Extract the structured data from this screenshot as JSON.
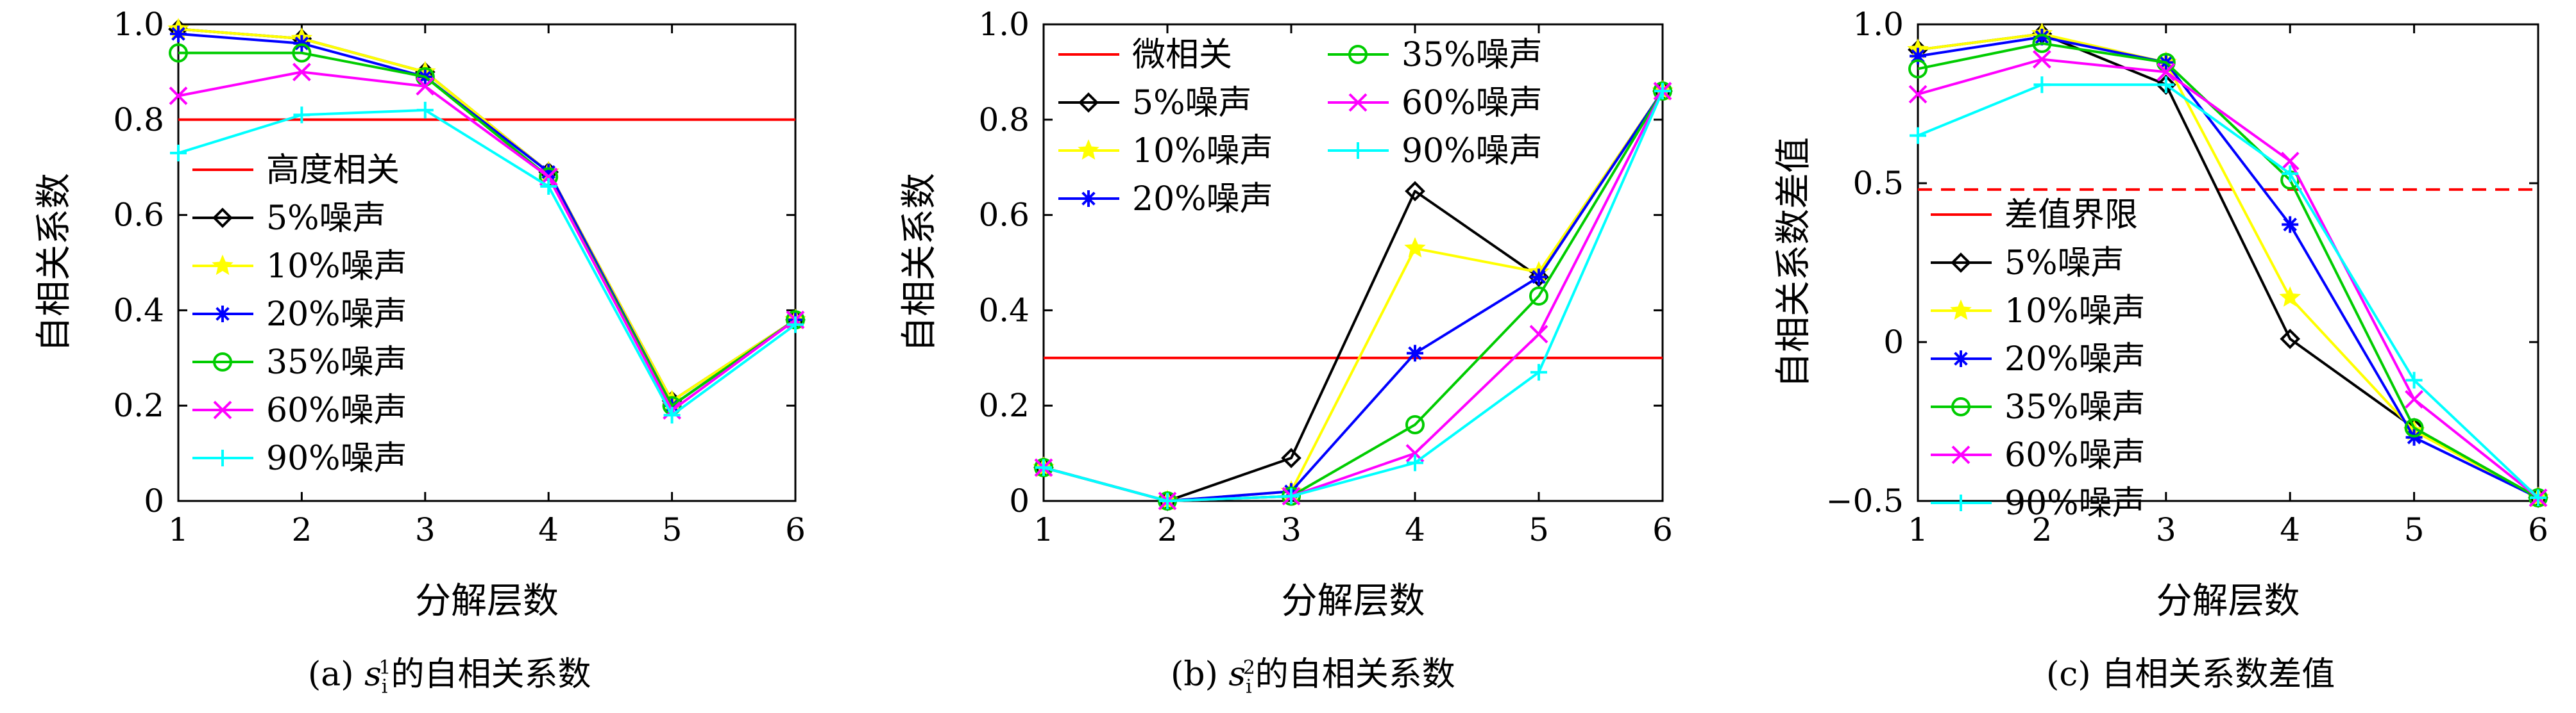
{
  "chart_data": [
    {
      "type": "line",
      "caption": "(a) s_i^1的自相关系数",
      "caption_parts": {
        "label": "(a)",
        "symbol": "s",
        "sub": "i",
        "sup": "1",
        "suffix": "的自相关系数"
      },
      "xlabel": "分解层数",
      "ylabel": "自相关系数",
      "x": [
        1,
        2,
        3,
        4,
        5,
        6
      ],
      "xlim": [
        1,
        6
      ],
      "ylim": [
        0,
        1.0
      ],
      "yticks": [
        0,
        0.2,
        0.4,
        0.6,
        0.8,
        1.0
      ],
      "ytick_labels": [
        "0",
        "0.2",
        "0.4",
        "0.6",
        "0.8",
        "1.0"
      ],
      "xticks": [
        1,
        2,
        3,
        4,
        5,
        6
      ],
      "grid": false,
      "legend_position": "bottom-left",
      "threshold": {
        "name": "高度相关",
        "value": 0.8,
        "color": "#ff0000",
        "dashed": false
      },
      "series": [
        {
          "name": "5%噪声",
          "color": "#000000",
          "marker": "diamond",
          "values": [
            0.99,
            0.97,
            0.9,
            0.69,
            0.21,
            0.38
          ]
        },
        {
          "name": "10%噪声",
          "color": "#ffff00",
          "marker": "star",
          "values": [
            0.99,
            0.97,
            0.9,
            0.69,
            0.21,
            0.38
          ]
        },
        {
          "name": "20%噪声",
          "color": "#0000ff",
          "marker": "asterisk",
          "values": [
            0.98,
            0.96,
            0.89,
            0.69,
            0.2,
            0.38
          ]
        },
        {
          "name": "35%噪声",
          "color": "#00cc00",
          "marker": "circle",
          "values": [
            0.94,
            0.94,
            0.89,
            0.68,
            0.2,
            0.38
          ]
        },
        {
          "name": "60%噪声",
          "color": "#ff00ff",
          "marker": "x",
          "values": [
            0.85,
            0.9,
            0.87,
            0.68,
            0.19,
            0.38
          ]
        },
        {
          "name": "90%噪声",
          "color": "#00ffff",
          "marker": "plus",
          "values": [
            0.73,
            0.81,
            0.82,
            0.66,
            0.18,
            0.37
          ]
        }
      ]
    },
    {
      "type": "line",
      "caption": "(b) s_i^2的自相关系数",
      "caption_parts": {
        "label": "(b)",
        "symbol": "s",
        "sub": "i",
        "sup": "2",
        "suffix": "的自相关系数"
      },
      "xlabel": "分解层数",
      "ylabel": "自相关系数",
      "x": [
        1,
        2,
        3,
        4,
        5,
        6
      ],
      "xlim": [
        1,
        6
      ],
      "ylim": [
        0,
        1.0
      ],
      "yticks": [
        0,
        0.2,
        0.4,
        0.6,
        0.8,
        1.0
      ],
      "ytick_labels": [
        "0",
        "0.2",
        "0.4",
        "0.6",
        "0.8",
        "1.0"
      ],
      "xticks": [
        1,
        2,
        3,
        4,
        5,
        6
      ],
      "grid": false,
      "legend_position": "top-left, two columns",
      "threshold": {
        "name": "微相关",
        "value": 0.3,
        "color": "#ff0000",
        "dashed": false
      },
      "series": [
        {
          "name": "5%噪声",
          "color": "#000000",
          "marker": "diamond",
          "values": [
            0.07,
            0.0,
            0.09,
            0.65,
            0.47,
            0.86
          ]
        },
        {
          "name": "10%噪声",
          "color": "#ffff00",
          "marker": "star",
          "values": [
            0.07,
            0.0,
            0.02,
            0.53,
            0.48,
            0.86
          ]
        },
        {
          "name": "20%噪声",
          "color": "#0000ff",
          "marker": "asterisk",
          "values": [
            0.07,
            0.0,
            0.02,
            0.31,
            0.47,
            0.86
          ]
        },
        {
          "name": "35%噪声",
          "color": "#00cc00",
          "marker": "circle",
          "values": [
            0.07,
            0.0,
            0.01,
            0.16,
            0.43,
            0.86
          ]
        },
        {
          "name": "60%噪声",
          "color": "#ff00ff",
          "marker": "x",
          "values": [
            0.07,
            0.0,
            0.01,
            0.1,
            0.35,
            0.86
          ]
        },
        {
          "name": "90%噪声",
          "color": "#00ffff",
          "marker": "plus",
          "values": [
            0.07,
            0.0,
            0.01,
            0.08,
            0.27,
            0.86
          ]
        }
      ]
    },
    {
      "type": "line",
      "caption": "(c) 自相关系数差值",
      "caption_parts": {
        "label": "(c)",
        "symbol": "",
        "sub": "",
        "sup": "",
        "suffix": "自相关系数差值"
      },
      "xlabel": "分解层数",
      "ylabel": "自相关系数差值",
      "x": [
        1,
        2,
        3,
        4,
        5,
        6
      ],
      "xlim": [
        1,
        6
      ],
      "ylim": [
        -0.5,
        1.0
      ],
      "yticks": [
        -0.5,
        0,
        0.5,
        1.0
      ],
      "ytick_labels": [
        "−0.5",
        "0",
        "0.5",
        "1.0"
      ],
      "xticks": [
        1,
        2,
        3,
        4,
        5,
        6
      ],
      "grid": false,
      "legend_position": "bottom-left",
      "threshold": {
        "name": "差值界限",
        "value": 0.48,
        "color": "#ff0000",
        "dashed": true
      },
      "series": [
        {
          "name": "5%噪声",
          "color": "#000000",
          "marker": "diamond",
          "values": [
            0.92,
            0.97,
            0.81,
            0.01,
            -0.27,
            -0.49
          ]
        },
        {
          "name": "10%噪声",
          "color": "#ffff00",
          "marker": "star",
          "values": [
            0.92,
            0.97,
            0.88,
            0.14,
            -0.28,
            -0.49
          ]
        },
        {
          "name": "20%噪声",
          "color": "#0000ff",
          "marker": "asterisk",
          "values": [
            0.9,
            0.96,
            0.88,
            0.37,
            -0.3,
            -0.49
          ]
        },
        {
          "name": "35%噪声",
          "color": "#00cc00",
          "marker": "circle",
          "values": [
            0.86,
            0.94,
            0.88,
            0.51,
            -0.27,
            -0.49
          ]
        },
        {
          "name": "60%噪声",
          "color": "#ff00ff",
          "marker": "x",
          "values": [
            0.78,
            0.89,
            0.85,
            0.57,
            -0.18,
            -0.49
          ]
        },
        {
          "name": "90%噪声",
          "color": "#00ffff",
          "marker": "plus",
          "values": [
            0.65,
            0.81,
            0.81,
            0.53,
            -0.12,
            -0.49
          ]
        }
      ]
    }
  ]
}
